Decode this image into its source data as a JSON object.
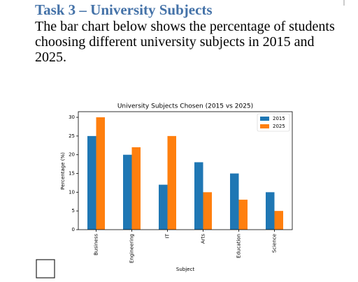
{
  "header": {
    "title": "Task 3 – University Subjects",
    "text": "The bar chart below shows the percentage of students choosing different university subjects in 2015 and 2025."
  },
  "chart_data": {
    "type": "bar",
    "title": "University Subjects Chosen (2015 vs 2025)",
    "x_label": "Subject",
    "y_label": "Percentage (%)",
    "categories": [
      "Business",
      "Engineering",
      "IT",
      "Arts",
      "Education",
      "Science"
    ],
    "series": [
      {
        "name": "2015",
        "color": "#1f77b4",
        "values": [
          25,
          20,
          12,
          18,
          15,
          10
        ]
      },
      {
        "name": "2025",
        "color": "#ff7f0e",
        "values": [
          30,
          22,
          25,
          10,
          8,
          5
        ]
      }
    ],
    "ylim": [
      0,
      31.5
    ],
    "yticks": [
      0,
      5,
      10,
      15,
      20,
      25,
      30
    ],
    "legend": "upper right"
  }
}
